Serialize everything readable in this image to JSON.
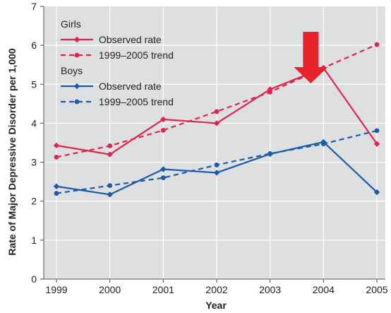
{
  "chart_data": {
    "type": "line",
    "xlabel": "Year",
    "ylabel": "Rate of Major Depressive Disorder per 1,000",
    "x": [
      "1999",
      "2000",
      "2001",
      "2002",
      "2003",
      "2004",
      "2005"
    ],
    "ylim": [
      0,
      7
    ],
    "yticks": [
      "0",
      "1",
      "2",
      "3",
      "4",
      "5",
      "6",
      "7"
    ],
    "grid": true,
    "legend": {
      "placement": "top-left",
      "groups": [
        {
          "label": "Girls",
          "entries": [
            "Observed rate",
            "1999–2005 trend"
          ]
        },
        {
          "label": "Boys",
          "entries": [
            "Observed rate",
            "1999–2005 trend"
          ]
        }
      ]
    },
    "series": [
      {
        "name": "Observed rate",
        "group": "Girls",
        "style": "solid",
        "color": "#e0244f",
        "values": [
          3.43,
          3.2,
          4.1,
          4.0,
          4.87,
          5.42,
          3.47
        ]
      },
      {
        "name": "1999–2005 trend",
        "group": "Girls",
        "style": "dashed",
        "color": "#e0244f",
        "values": [
          3.13,
          3.42,
          3.82,
          4.3,
          4.8,
          5.42,
          6.02
        ]
      },
      {
        "name": "Observed rate",
        "group": "Boys",
        "style": "solid",
        "color": "#1c5ba8",
        "values": [
          2.38,
          2.17,
          2.82,
          2.73,
          3.21,
          3.52,
          2.23
        ]
      },
      {
        "name": "1999–2005 trend",
        "group": "Boys",
        "style": "dashed",
        "color": "#1c5ba8",
        "values": [
          2.2,
          2.4,
          2.6,
          2.93,
          3.22,
          3.47,
          3.81
        ]
      }
    ],
    "annotation": {
      "type": "arrow",
      "shape": "down-arrow",
      "color": "#e8232a",
      "points_to": "2004"
    }
  }
}
